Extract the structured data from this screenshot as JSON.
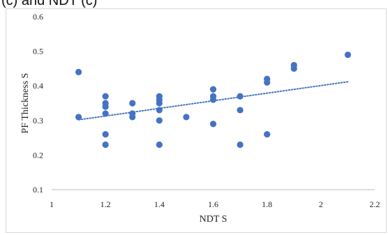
{
  "caption": "(c) and NDT (c)",
  "chart_data": {
    "type": "scatter",
    "title": "",
    "xlabel": "NDT S",
    "ylabel": "PF Thickness S",
    "xlim": [
      1,
      2.2
    ],
    "ylim": [
      0.1,
      0.6
    ],
    "x_ticks": [
      1,
      1.2,
      1.4,
      1.6,
      1.8,
      2,
      2.2
    ],
    "x_tick_labels": [
      "1",
      "1.2",
      "1.4",
      "1.6",
      "1.8",
      "2",
      "2.2"
    ],
    "y_ticks": [
      0.1,
      0.2,
      0.3,
      0.4,
      0.5,
      0.6
    ],
    "y_tick_labels": [
      "0.1",
      "0.2",
      "0.3",
      "0.4",
      "0.5",
      "0.6"
    ],
    "grid": false,
    "legend": "none",
    "marker_color": "#4472C4",
    "trendline": {
      "type": "linear",
      "style": "dotted",
      "color": "#4472C4",
      "x": [
        1.1,
        2.1
      ],
      "y": [
        0.302,
        0.412
      ]
    },
    "points": [
      {
        "x": 1.1,
        "y": 0.44
      },
      {
        "x": 1.1,
        "y": 0.31
      },
      {
        "x": 1.2,
        "y": 0.37
      },
      {
        "x": 1.2,
        "y": 0.35
      },
      {
        "x": 1.2,
        "y": 0.34
      },
      {
        "x": 1.2,
        "y": 0.32
      },
      {
        "x": 1.2,
        "y": 0.26
      },
      {
        "x": 1.2,
        "y": 0.23
      },
      {
        "x": 1.3,
        "y": 0.35
      },
      {
        "x": 1.3,
        "y": 0.32
      },
      {
        "x": 1.3,
        "y": 0.31
      },
      {
        "x": 1.4,
        "y": 0.37
      },
      {
        "x": 1.4,
        "y": 0.36
      },
      {
        "x": 1.4,
        "y": 0.35
      },
      {
        "x": 1.4,
        "y": 0.33
      },
      {
        "x": 1.4,
        "y": 0.3
      },
      {
        "x": 1.4,
        "y": 0.23
      },
      {
        "x": 1.5,
        "y": 0.31
      },
      {
        "x": 1.6,
        "y": 0.39
      },
      {
        "x": 1.6,
        "y": 0.37
      },
      {
        "x": 1.6,
        "y": 0.36
      },
      {
        "x": 1.6,
        "y": 0.29
      },
      {
        "x": 1.7,
        "y": 0.37
      },
      {
        "x": 1.7,
        "y": 0.33
      },
      {
        "x": 1.7,
        "y": 0.23
      },
      {
        "x": 1.8,
        "y": 0.42
      },
      {
        "x": 1.8,
        "y": 0.41
      },
      {
        "x": 1.8,
        "y": 0.26
      },
      {
        "x": 1.9,
        "y": 0.46
      },
      {
        "x": 1.9,
        "y": 0.45
      },
      {
        "x": 2.1,
        "y": 0.49
      }
    ]
  }
}
